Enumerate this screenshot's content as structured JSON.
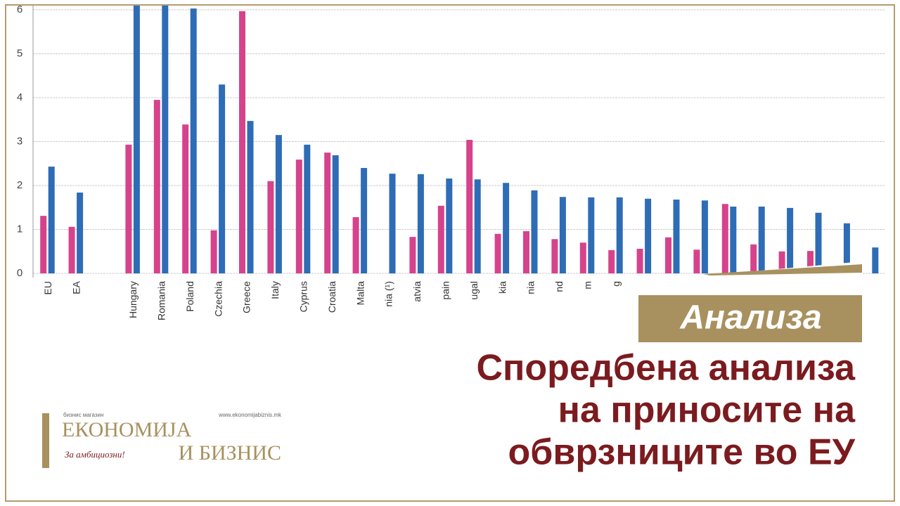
{
  "chart_data": {
    "type": "bar",
    "categories": [
      "EU",
      "EA",
      null,
      "Hungary",
      "Romania",
      "Poland",
      "Czechia",
      "Greece",
      "Italy",
      "Cyprus",
      "Croatia",
      "Malta",
      "nia (¹)",
      "atvia",
      "pain",
      "ugal",
      "kia",
      "nia",
      "nd",
      "m",
      "g",
      null,
      null,
      null,
      null,
      null,
      null,
      null,
      null,
      null
    ],
    "series": [
      {
        "color": "#d6438c",
        "values": [
          1.31,
          1.06,
          null,
          2.93,
          3.95,
          3.39,
          0.98,
          5.97,
          2.1,
          2.59,
          2.75,
          1.28,
          null,
          0.83,
          1.54,
          3.04,
          0.9,
          0.96,
          0.78,
          0.7,
          0.53,
          0.56,
          0.82,
          0.54,
          1.58,
          0.66,
          0.5,
          0.51,
          null,
          null
        ]
      },
      {
        "color": "#2e6cb6",
        "values": [
          2.43,
          1.84,
          null,
          6.1,
          6.1,
          6.03,
          4.3,
          3.47,
          3.15,
          2.93,
          2.69,
          2.4,
          2.27,
          2.26,
          2.16,
          2.14,
          2.06,
          1.89,
          1.74,
          1.73,
          1.73,
          1.7,
          1.68,
          1.66,
          1.52,
          1.52,
          1.49,
          1.38,
          1.14,
          0.59
        ]
      }
    ],
    "ylim": [
      0,
      6
    ],
    "yticks": [
      0,
      1,
      2,
      3,
      4,
      5,
      6
    ],
    "grid": true
  },
  "banner": {
    "tag": "Анализа",
    "headline": [
      "Споредбена анализа",
      "на приносите на",
      "обврзниците во ЕУ"
    ]
  },
  "logo": {
    "kicker": "бизнис магазин",
    "url": "www.ekonomijabiznis.mk",
    "name1": "ЕКОНОМИЈА",
    "name2": "И БИЗНИС",
    "slogan": "За амбициозни!"
  }
}
